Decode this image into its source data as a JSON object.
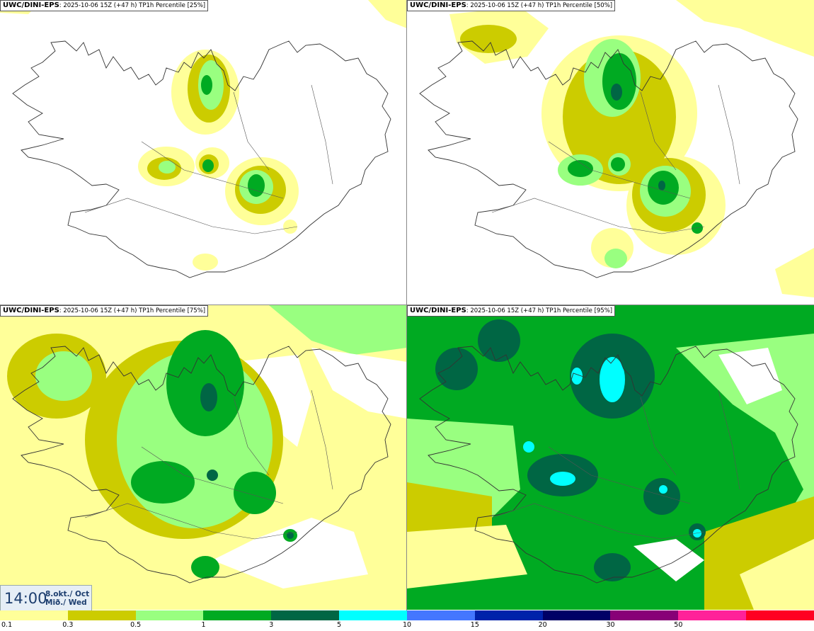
{
  "panels": [
    {
      "model": "UWC/DINI-EPS",
      "run_info": ": 2025-10-06 15Z (+47 h) TP1h Percentile [25%]"
    },
    {
      "model": "UWC/DINI-EPS",
      "run_info": ": 2025-10-06 15Z (+47 h) TP1h Percentile [50%]"
    },
    {
      "model": "UWC/DINI-EPS",
      "run_info": ": 2025-10-06 15Z (+47 h) TP1h Percentile [75%]"
    },
    {
      "model": "UWC/DINI-EPS",
      "run_info": ": 2025-10-06 15Z (+47 h) TP1h Percentile [95%]"
    }
  ],
  "valid_time": {
    "time": "14:00",
    "date_line1": "8.okt./ Oct",
    "date_line2": "Mið./ Wed"
  },
  "legend": {
    "colors": [
      "#ffff99",
      "#cccc00",
      "#99ff80",
      "#00aa22",
      "#006644",
      "#00ffff",
      "#4477ff",
      "#0022aa",
      "#000066",
      "#880077",
      "#ff2299",
      "#ff0022"
    ],
    "ticks": [
      "0.1",
      "0.3",
      "0.5",
      "1",
      "3",
      "5",
      "10",
      "15",
      "20",
      "30",
      "50"
    ]
  }
}
